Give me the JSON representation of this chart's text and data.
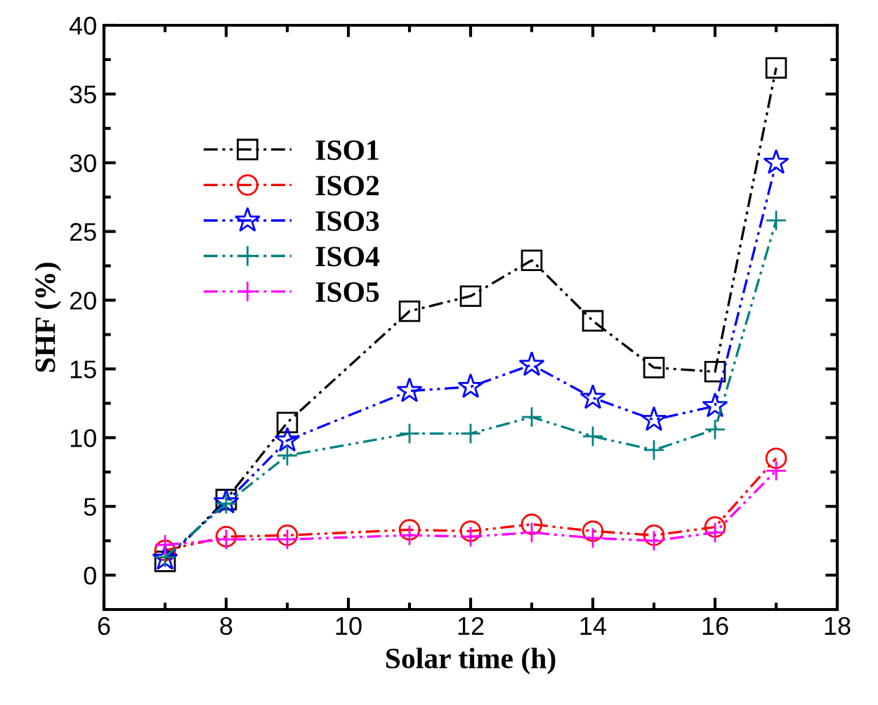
{
  "chart_data": {
    "type": "line",
    "xlabel": "Solar time (h)",
    "ylabel": "SHF (%)",
    "x": [
      7,
      8,
      9,
      11,
      12,
      13,
      14,
      15,
      16,
      17
    ],
    "xlim": [
      6,
      18
    ],
    "xticks": [
      6,
      8,
      10,
      12,
      14,
      16,
      18
    ],
    "ylim": [
      -2.5,
      40
    ],
    "yticks": [
      0,
      5,
      10,
      15,
      20,
      25,
      30,
      35,
      40
    ],
    "grid": false,
    "legend": "top left",
    "line_style": "dashed",
    "series": [
      {
        "name": "ISO1",
        "color": "#000000",
        "marker": "square",
        "values": [
          1.0,
          5.5,
          11.1,
          19.2,
          20.3,
          22.9,
          18.5,
          15.1,
          14.8,
          36.9
        ]
      },
      {
        "name": "ISO2",
        "color": "#ff0000",
        "marker": "circle",
        "values": [
          1.8,
          2.8,
          2.9,
          3.3,
          3.2,
          3.7,
          3.2,
          2.9,
          3.5,
          8.5
        ]
      },
      {
        "name": "ISO3",
        "color": "#0000ff",
        "marker": "star",
        "values": [
          1.2,
          5.3,
          9.8,
          13.4,
          13.7,
          15.3,
          12.9,
          11.3,
          12.3,
          30.0
        ]
      },
      {
        "name": "ISO4",
        "color": "#008080",
        "marker": "cross",
        "values": [
          1.3,
          5.2,
          8.7,
          10.3,
          10.3,
          11.5,
          10.1,
          9.1,
          10.6,
          25.8
        ]
      },
      {
        "name": "ISO5",
        "color": "#ff00ff",
        "marker": "cross",
        "values": [
          2.2,
          2.6,
          2.6,
          2.9,
          2.8,
          3.1,
          2.7,
          2.5,
          3.1,
          7.6
        ]
      }
    ]
  }
}
